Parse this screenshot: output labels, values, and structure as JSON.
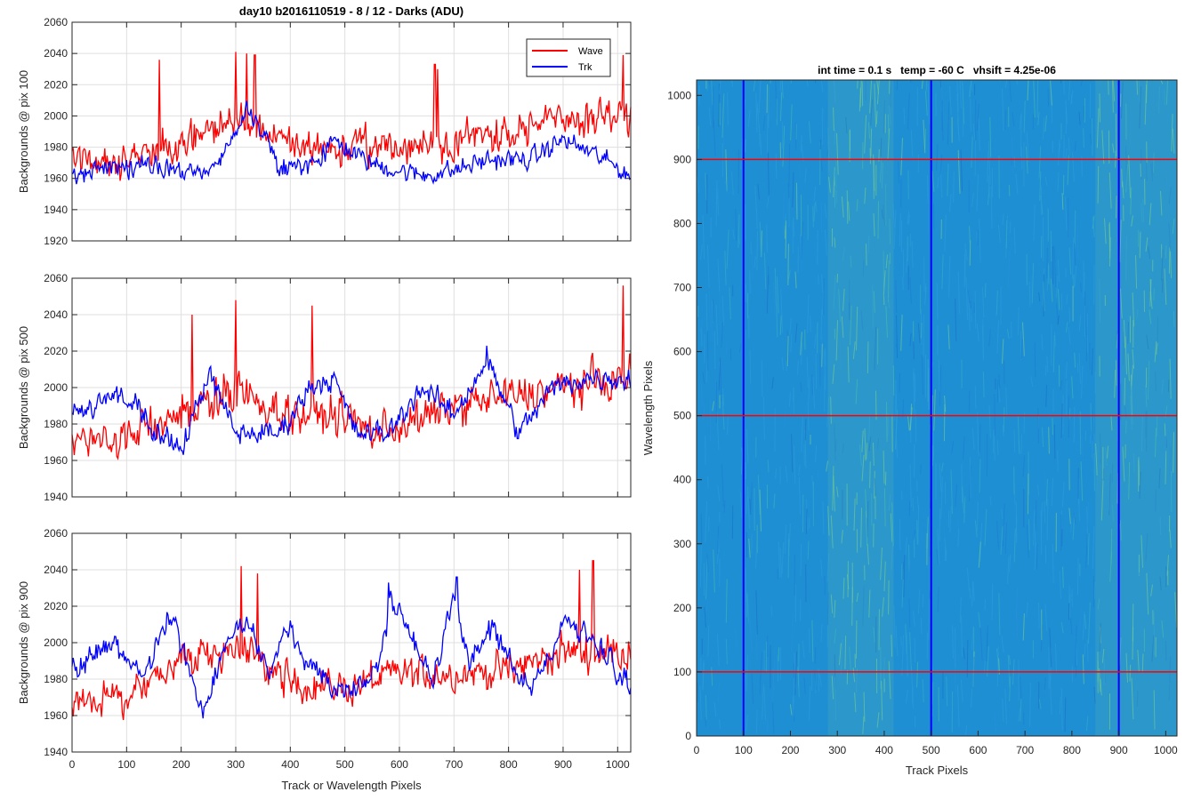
{
  "figure": {
    "title": "day10 b2016110519 - 8 / 12 - Darks (ADU)"
  },
  "chart_data": [
    {
      "type": "line",
      "title": "day10 b2016110519 - 8 / 12 - Darks (ADU)",
      "xlabel": "",
      "ylabel": "Backgrounds @ pix 100",
      "xlim": [
        0,
        1024
      ],
      "ylim": [
        1920,
        2060
      ],
      "xticks": [
        0,
        100,
        200,
        300,
        400,
        500,
        600,
        700,
        800,
        900,
        1000
      ],
      "yticks": [
        1920,
        1940,
        1960,
        1980,
        2000,
        2020,
        2040,
        2060
      ],
      "show_xticklabels": false,
      "grid": true,
      "legend": {
        "location": "top-right",
        "entries": [
          "Wave",
          "Trk"
        ]
      },
      "x_step": 2,
      "series": [
        {
          "name": "Wave",
          "color": "#ff0000",
          "trend": [
            [
              0,
              1973
            ],
            [
              100,
              1972
            ],
            [
              200,
              1982
            ],
            [
              250,
              1990
            ],
            [
              300,
              1998
            ],
            [
              350,
              1990
            ],
            [
              400,
              1980
            ],
            [
              500,
              1980
            ],
            [
              600,
              1980
            ],
            [
              700,
              1985
            ],
            [
              800,
              1990
            ],
            [
              900,
              1998
            ],
            [
              1024,
              2000
            ]
          ],
          "noise_amp": 16,
          "spikes": [
            [
              160,
              2036
            ],
            [
              300,
              2041
            ],
            [
              320,
              2040
            ],
            [
              335,
              2039
            ],
            [
              665,
              2033
            ],
            [
              670,
              2030
            ],
            [
              1010,
              2039
            ]
          ]
        },
        {
          "name": "Trk",
          "color": "#0000ff",
          "trend": [
            [
              0,
              1962
            ],
            [
              100,
              1968
            ],
            [
              200,
              1965
            ],
            [
              250,
              1962
            ],
            [
              300,
              1990
            ],
            [
              320,
              2005
            ],
            [
              360,
              1985
            ],
            [
              380,
              1965
            ],
            [
              450,
              1970
            ],
            [
              480,
              1985
            ],
            [
              520,
              1975
            ],
            [
              560,
              1968
            ],
            [
              640,
              1962
            ],
            [
              700,
              1965
            ],
            [
              760,
              1972
            ],
            [
              840,
              1972
            ],
            [
              900,
              1985
            ],
            [
              960,
              1975
            ],
            [
              1024,
              1962
            ]
          ],
          "noise_amp": 9,
          "spikes": []
        }
      ]
    },
    {
      "type": "line",
      "xlabel": "",
      "ylabel": "Backgrounds @ pix 500",
      "xlim": [
        0,
        1024
      ],
      "ylim": [
        1940,
        2060
      ],
      "xticks": [
        0,
        100,
        200,
        300,
        400,
        500,
        600,
        700,
        800,
        900,
        1000
      ],
      "yticks": [
        1940,
        1960,
        1980,
        2000,
        2020,
        2040,
        2060
      ],
      "show_xticklabels": false,
      "grid": true,
      "x_step": 2,
      "series": [
        {
          "name": "Wave",
          "color": "#ff0000",
          "trend": [
            [
              0,
              1970
            ],
            [
              100,
              1972
            ],
            [
              200,
              1988
            ],
            [
              300,
              1998
            ],
            [
              400,
              1985
            ],
            [
              500,
              1985
            ],
            [
              550,
              1975
            ],
            [
              650,
              1983
            ],
            [
              700,
              1990
            ],
            [
              800,
              1995
            ],
            [
              900,
              2000
            ],
            [
              1024,
              2005
            ]
          ],
          "noise_amp": 15,
          "spikes": [
            [
              300,
              2048
            ],
            [
              440,
              2045
            ],
            [
              1010,
              2056
            ],
            [
              220,
              2040
            ]
          ]
        },
        {
          "name": "Trk",
          "color": "#0000ff",
          "trend": [
            [
              0,
              1985
            ],
            [
              80,
              1995
            ],
            [
              120,
              1992
            ],
            [
              150,
              1975
            ],
            [
              200,
              1965
            ],
            [
              250,
              2008
            ],
            [
              300,
              1975
            ],
            [
              330,
              1975
            ],
            [
              380,
              1975
            ],
            [
              440,
              2002
            ],
            [
              480,
              2005
            ],
            [
              520,
              1975
            ],
            [
              580,
              1975
            ],
            [
              640,
              2000
            ],
            [
              700,
              1985
            ],
            [
              760,
              2015
            ],
            [
              820,
              1975
            ],
            [
              880,
              2000
            ],
            [
              940,
              2005
            ],
            [
              1024,
              2005
            ]
          ],
          "noise_amp": 9,
          "spikes": [
            [
              760,
              2023
            ]
          ]
        }
      ]
    },
    {
      "type": "line",
      "xlabel": "Track or Wavelength Pixels",
      "ylabel": "Backgrounds @ pix 900",
      "xlim": [
        0,
        1024
      ],
      "ylim": [
        1940,
        2060
      ],
      "xticks": [
        0,
        100,
        200,
        300,
        400,
        500,
        600,
        700,
        800,
        900,
        1000
      ],
      "yticks": [
        1940,
        1960,
        1980,
        2000,
        2020,
        2040,
        2060
      ],
      "show_xticklabels": true,
      "grid": true,
      "x_step": 2,
      "series": [
        {
          "name": "Wave",
          "color": "#ff0000",
          "trend": [
            [
              0,
              1970
            ],
            [
              100,
              1970
            ],
            [
              200,
              1990
            ],
            [
              300,
              1998
            ],
            [
              400,
              1978
            ],
            [
              500,
              1975
            ],
            [
              600,
              1983
            ],
            [
              700,
              1983
            ],
            [
              800,
              1985
            ],
            [
              900,
              1995
            ],
            [
              1024,
              1995
            ]
          ],
          "noise_amp": 14,
          "spikes": [
            [
              310,
              2042
            ],
            [
              340,
              2038
            ],
            [
              955,
              2045
            ],
            [
              930,
              2040
            ]
          ]
        },
        {
          "name": "Trk",
          "color": "#0000ff",
          "trend": [
            [
              0,
              1985
            ],
            [
              80,
              2000
            ],
            [
              130,
              1980
            ],
            [
              180,
              2015
            ],
            [
              240,
              1965
            ],
            [
              300,
              2010
            ],
            [
              330,
              2005
            ],
            [
              360,
              1985
            ],
            [
              400,
              2008
            ],
            [
              440,
              1985
            ],
            [
              480,
              1975
            ],
            [
              520,
              1975
            ],
            [
              560,
              1985
            ],
            [
              585,
              2025
            ],
            [
              620,
              2005
            ],
            [
              660,
              1980
            ],
            [
              700,
              2025
            ],
            [
              730,
              1985
            ],
            [
              770,
              2010
            ],
            [
              800,
              1990
            ],
            [
              850,
              1975
            ],
            [
              900,
              2015
            ],
            [
              960,
              2000
            ],
            [
              1024,
              1975
            ]
          ],
          "noise_amp": 9,
          "spikes": [
            [
              580,
              2033
            ],
            [
              705,
              2036
            ]
          ]
        }
      ]
    },
    {
      "type": "heatmap",
      "title": "int time = 0.1 s   temp = -60 C   vhsift = 4.25e-06",
      "xlabel": "Track Pixels",
      "ylabel": "Wavelength Pixels",
      "xlim": [
        0,
        1024
      ],
      "ylim": [
        0,
        1024
      ],
      "xticks": [
        0,
        100,
        200,
        300,
        400,
        500,
        600,
        700,
        800,
        900,
        1000
      ],
      "yticks": [
        0,
        100,
        200,
        300,
        400,
        500,
        600,
        700,
        800,
        900,
        1000
      ],
      "colormap": "parula",
      "base_color": "#1f8fd4",
      "bright_color": "#8fd48f",
      "bright_bands": [
        [
          280,
          420
        ],
        [
          850,
          1024
        ]
      ],
      "vertical_markers": {
        "color": "#0000ff",
        "values": [
          100,
          500,
          900
        ]
      },
      "horizontal_markers": {
        "color": "#ff0000",
        "values": [
          100,
          500,
          900
        ]
      }
    }
  ]
}
